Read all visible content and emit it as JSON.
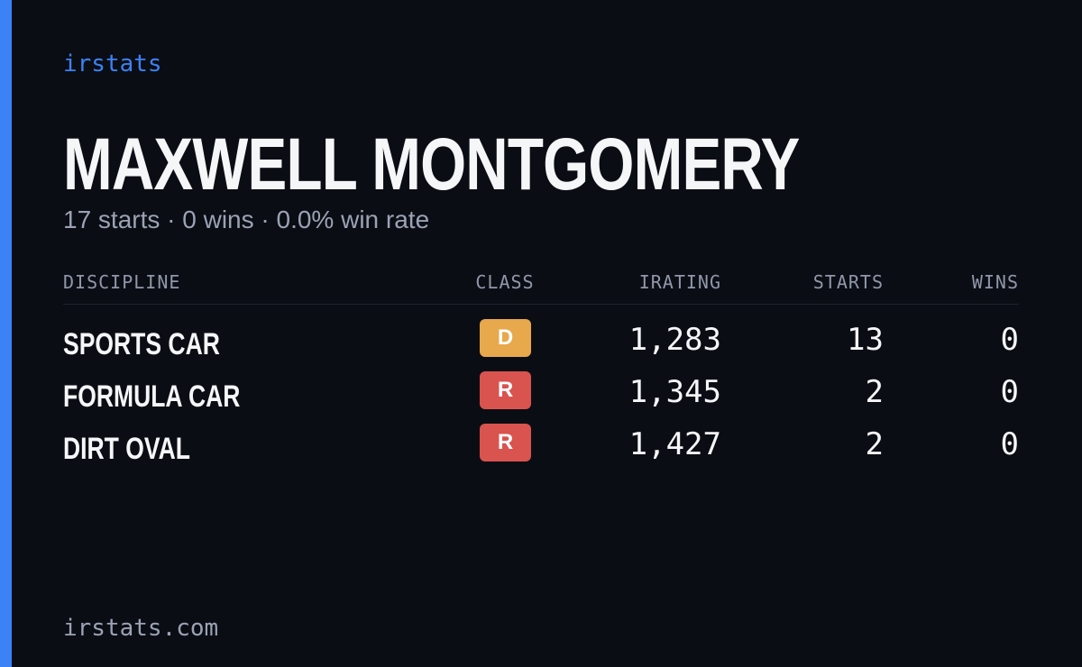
{
  "brand": "irstats",
  "player": {
    "name": "MAXWELL MONTGOMERY",
    "summary": "17 starts · 0 wins · 0.0% win rate"
  },
  "table": {
    "headers": [
      "DISCIPLINE",
      "CLASS",
      "IRATING",
      "STARTS",
      "WINS"
    ],
    "rows": [
      [
        "SPORTS CAR",
        "D",
        "1,283",
        "13",
        "0"
      ],
      [
        "FORMULA CAR",
        "R",
        "1,345",
        "2",
        "0"
      ],
      [
        "DIRT OVAL",
        "R",
        "1,427",
        "2",
        "0"
      ]
    ],
    "class_colors": {
      "D": "#e8a84c",
      "R": "#d9534f"
    }
  },
  "footer": "irstats.com"
}
